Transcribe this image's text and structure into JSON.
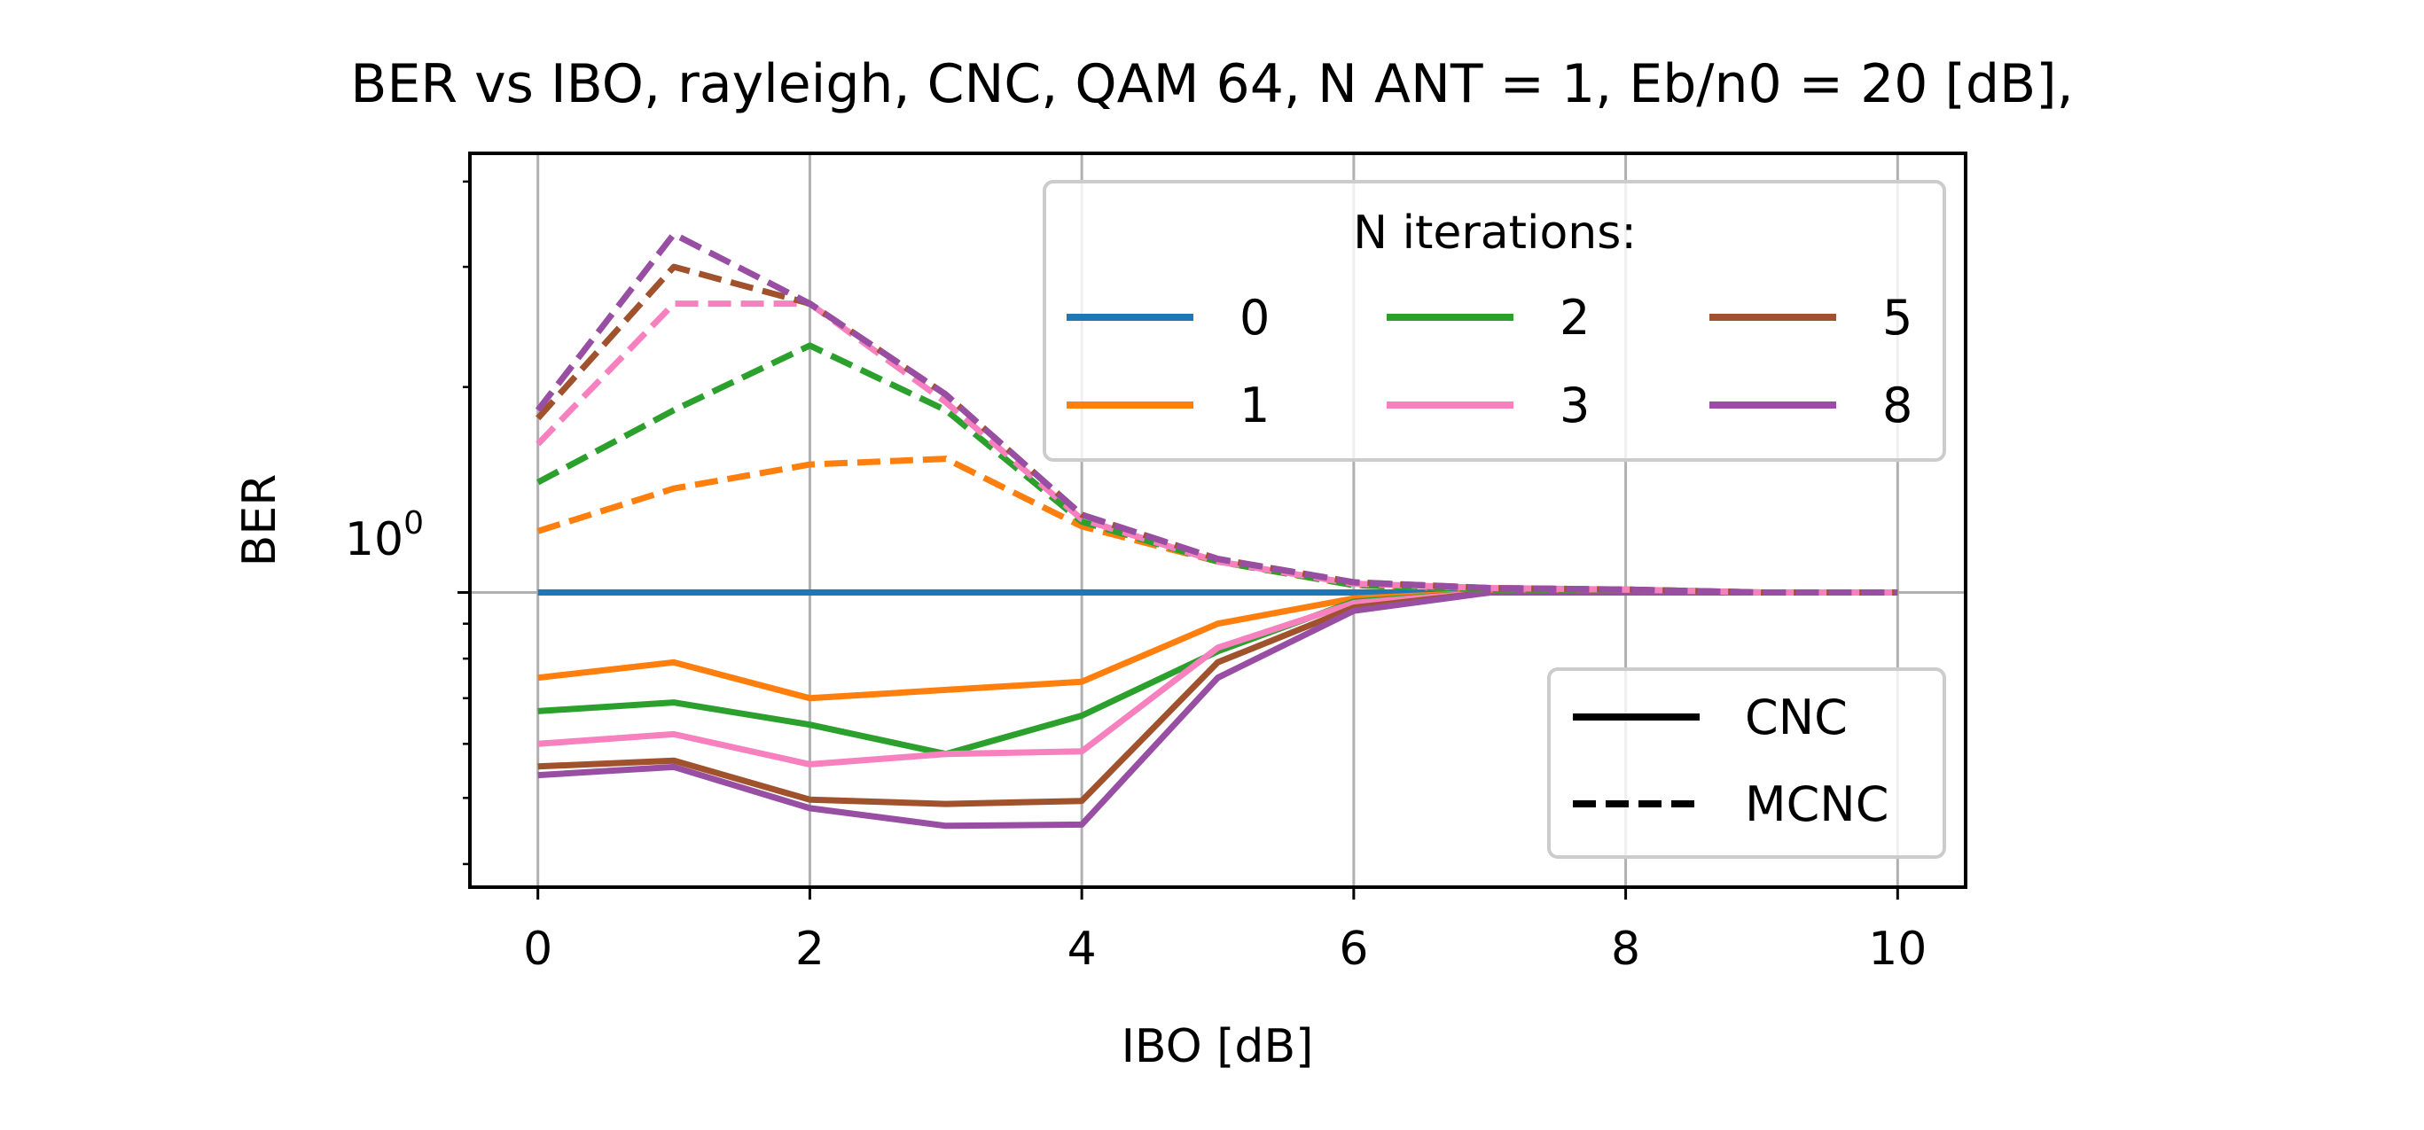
{
  "chart_data": {
    "type": "line",
    "title": "BER vs IBO, rayleigh, CNC, QAM 64, N ANT = 1, Eb/n0 = 20 [dB],",
    "xlabel": "IBO [dB]",
    "ylabel": "BER",
    "xlim": [
      -0.5,
      10.5
    ],
    "xticks": [
      0,
      2,
      4,
      6,
      8,
      10
    ],
    "xtick_labels": [
      "0",
      "2",
      "4",
      "6",
      "8",
      "10"
    ],
    "yscale": "log",
    "ylim": [
      0.37,
      4.4
    ],
    "ytick_major": {
      "base": "10",
      "exp": "0",
      "value": 1.0
    },
    "grid": true,
    "x": [
      0,
      1,
      2,
      3,
      4,
      5,
      6,
      7,
      8,
      9,
      10
    ],
    "series": [
      {
        "name": "0",
        "method": "CNC",
        "color": "#1f77b4",
        "style": "solid",
        "values": [
          1.0,
          1.0,
          1.0,
          1.0,
          1.0,
          1.0,
          1.0,
          1.0,
          1.0,
          1.0,
          1.0
        ]
      },
      {
        "name": "1",
        "method": "CNC",
        "color": "#ff7f0e",
        "style": "solid",
        "values": [
          0.75,
          0.79,
          0.7,
          0.72,
          0.74,
          0.9,
          0.98,
          1.0,
          1.0,
          1.0,
          1.0
        ]
      },
      {
        "name": "2",
        "method": "CNC",
        "color": "#2ca02c",
        "style": "solid",
        "values": [
          0.67,
          0.69,
          0.64,
          0.58,
          0.66,
          0.82,
          0.97,
          1.0,
          1.0,
          1.0,
          1.0
        ]
      },
      {
        "name": "3",
        "method": "CNC",
        "color": "#f781bf",
        "style": "solid",
        "values": [
          0.6,
          0.62,
          0.56,
          0.58,
          0.585,
          0.83,
          0.965,
          1.0,
          1.0,
          1.0,
          1.0
        ]
      },
      {
        "name": "5",
        "method": "CNC",
        "color": "#a0522d",
        "style": "solid",
        "values": [
          0.556,
          0.567,
          0.497,
          0.49,
          0.495,
          0.79,
          0.95,
          1.0,
          1.0,
          1.0,
          1.0
        ]
      },
      {
        "name": "8",
        "method": "CNC",
        "color": "#984ea3",
        "style": "solid",
        "values": [
          0.54,
          0.555,
          0.483,
          0.455,
          0.457,
          0.75,
          0.94,
          1.0,
          1.0,
          1.0,
          1.0
        ]
      },
      {
        "name": "1",
        "method": "MCNC",
        "color": "#ff7f0e",
        "style": "dashed",
        "values": [
          1.23,
          1.42,
          1.54,
          1.57,
          1.25,
          1.11,
          1.025,
          1.01,
          1.01,
          1.0,
          1.0
        ]
      },
      {
        "name": "2",
        "method": "MCNC",
        "color": "#2ca02c",
        "style": "dashed",
        "values": [
          1.45,
          1.85,
          2.3,
          1.85,
          1.27,
          1.11,
          1.025,
          1.01,
          1.01,
          1.0,
          1.0
        ]
      },
      {
        "name": "3",
        "method": "MCNC",
        "color": "#f781bf",
        "style": "dashed",
        "values": [
          1.65,
          2.65,
          2.65,
          1.9,
          1.28,
          1.11,
          1.03,
          1.015,
          1.01,
          1.0,
          1.0
        ]
      },
      {
        "name": "5",
        "method": "MCNC",
        "color": "#a0522d",
        "style": "dashed",
        "values": [
          1.8,
          3.0,
          2.65,
          1.95,
          1.3,
          1.12,
          1.035,
          1.015,
          1.01,
          1.0,
          1.0
        ]
      },
      {
        "name": "8",
        "method": "MCNC",
        "color": "#984ea3",
        "style": "dashed",
        "values": [
          1.85,
          3.35,
          2.65,
          1.95,
          1.3,
          1.12,
          1.035,
          1.015,
          1.01,
          1.0,
          1.0
        ]
      }
    ],
    "legend_iterations": {
      "title": "N iterations:",
      "placement": "top-right",
      "entries": [
        {
          "label": "0",
          "color": "#1f77b4"
        },
        {
          "label": "1",
          "color": "#ff7f0e"
        },
        {
          "label": "2",
          "color": "#2ca02c"
        },
        {
          "label": "3",
          "color": "#f781bf"
        },
        {
          "label": "5",
          "color": "#a0522d"
        },
        {
          "label": "8",
          "color": "#984ea3"
        }
      ]
    },
    "legend_method": {
      "placement": "lower-right",
      "entries": [
        {
          "label": "CNC",
          "style": "solid",
          "color": "#000000"
        },
        {
          "label": "MCNC",
          "style": "dashed",
          "color": "#000000"
        }
      ]
    }
  }
}
